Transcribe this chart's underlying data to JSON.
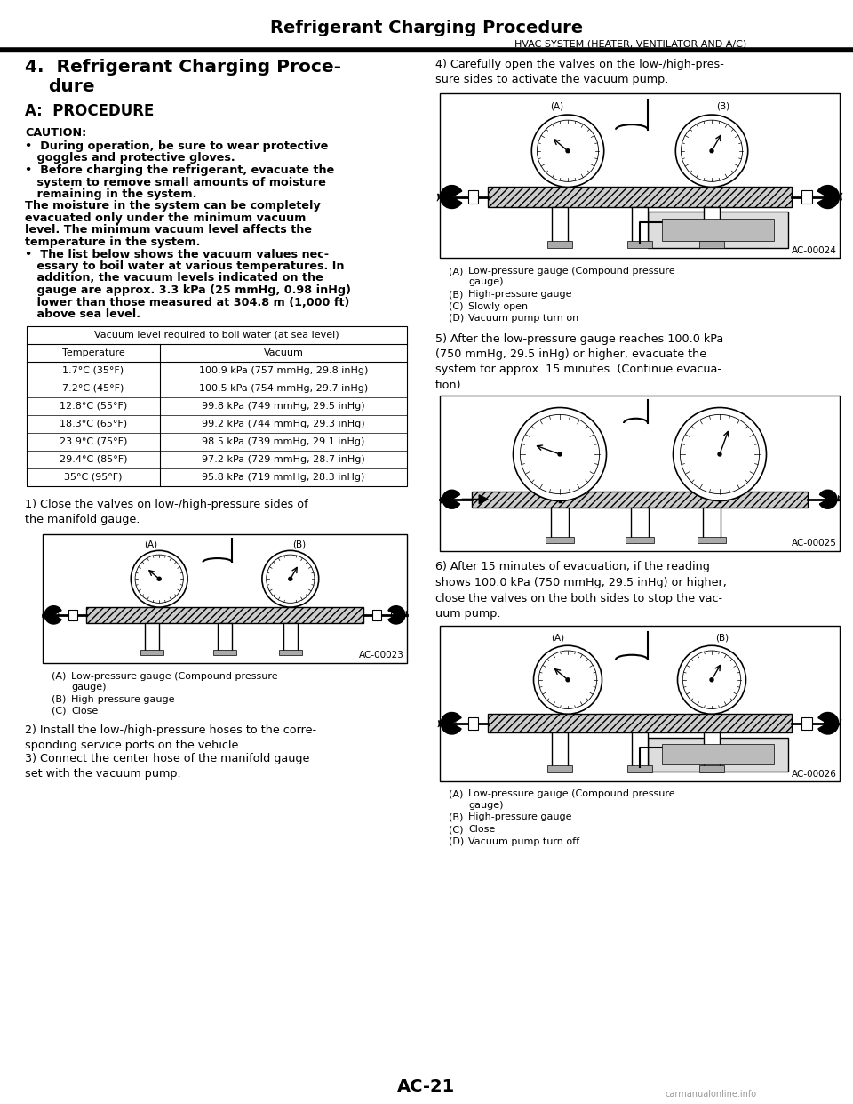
{
  "page_title": "Refrigerant Charging Procedure",
  "page_subtitle": "HVAC SYSTEM (HEATER, VENTILATOR AND A/C)",
  "page_number": "AC-21",
  "caution_label": "CAUTION:",
  "bullet1_line1": "•  During operation, be sure to wear protective",
  "bullet1_line2": "   goggles and protective gloves.",
  "bullet2_line1": "•  Before charging the refrigerant, evacuate the",
  "bullet2_line2": "   system to remove small amounts of moisture",
  "bullet2_line3": "   remaining in the system.",
  "para1_line1": "The moisture in the system can be completely",
  "para1_line2": "evacuated only under the minimum vacuum",
  "para1_line3": "level. The minimum vacuum level affects the",
  "para1_line4": "temperature in the system.",
  "bullet3_line1": "•  The list below shows the vacuum values nec-",
  "bullet3_line2": "   essary to boil water at various temperatures. In",
  "bullet3_line3": "   addition, the vacuum levels indicated on the",
  "bullet3_line4": "   gauge are approx. 3.3 kPa (25 mmHg, 0.98 inHg)",
  "bullet3_line5": "   lower than those measured at 304.8 m (1,000 ft)",
  "bullet3_line6": "   above sea level.",
  "table_header": "Vacuum level required to boil water (at sea level)",
  "table_col1": "Temperature",
  "table_col2": "Vacuum",
  "table_rows": [
    [
      "1.7°C (35°F)",
      "100.9 kPa (757 mmHg, 29.8 inHg)"
    ],
    [
      "7.2°C (45°F)",
      "100.5 kPa (754 mmHg, 29.7 inHg)"
    ],
    [
      "12.8°C (55°F)",
      "99.8 kPa (749 mmHg, 29.5 inHg)"
    ],
    [
      "18.3°C (65°F)",
      "99.2 kPa (744 mmHg, 29.3 inHg)"
    ],
    [
      "23.9°C (75°F)",
      "98.5 kPa (739 mmHg, 29.1 inHg)"
    ],
    [
      "29.4°C (85°F)",
      "97.2 kPa (729 mmHg, 28.7 inHg)"
    ],
    [
      "35°C (95°F)",
      "95.8 kPa (719 mmHg, 28.3 inHg)"
    ]
  ],
  "step1_text": "1) Close the valves on low-/high-pressure sides of\nthe manifold gauge.",
  "diagram1_label": "AC-00023",
  "diag1_caps": [
    [
      "(A)",
      "Low-pressure gauge (Compound pressure\ngauge)"
    ],
    [
      "(B)",
      "High-pressure gauge"
    ],
    [
      "(C)",
      "Close"
    ]
  ],
  "step2_text": "2) Install the low-/high-pressure hoses to the corre-\nsponding service ports on the vehicle.",
  "step3_text": "3) Connect the center hose of the manifold gauge\nset with the vacuum pump.",
  "step4_text": "4) Carefully open the valves on the low-/high-pres-\nsure sides to activate the vacuum pump.",
  "diagram2_label": "AC-00024",
  "diag2_caps": [
    [
      "(A)",
      "Low-pressure gauge (Compound pressure\ngauge)"
    ],
    [
      "(B)",
      "High-pressure gauge"
    ],
    [
      "(C)",
      "Slowly open"
    ],
    [
      "(D)",
      "Vacuum pump turn on"
    ]
  ],
  "step5_text": "5) After the low-pressure gauge reaches 100.0 kPa\n(750 mmHg, 29.5 inHg) or higher, evacuate the\nsystem for approx. 15 minutes. (Continue evacua-\ntion).",
  "diagram3_label": "AC-00025",
  "step6_text": "6) After 15 minutes of evacuation, if the reading\nshows 100.0 kPa (750 mmHg, 29.5 inHg) or higher,\nclose the valves on the both sides to stop the vac-\nuum pump.",
  "diagram4_label": "AC-00026",
  "diag4_caps": [
    [
      "(A)",
      "Low-pressure gauge (Compound pressure\ngauge)"
    ],
    [
      "(B)",
      "High-pressure gauge"
    ],
    [
      "(C)",
      "Close"
    ],
    [
      "(D)",
      "Vacuum pump turn off"
    ]
  ],
  "bg_color": "#ffffff"
}
